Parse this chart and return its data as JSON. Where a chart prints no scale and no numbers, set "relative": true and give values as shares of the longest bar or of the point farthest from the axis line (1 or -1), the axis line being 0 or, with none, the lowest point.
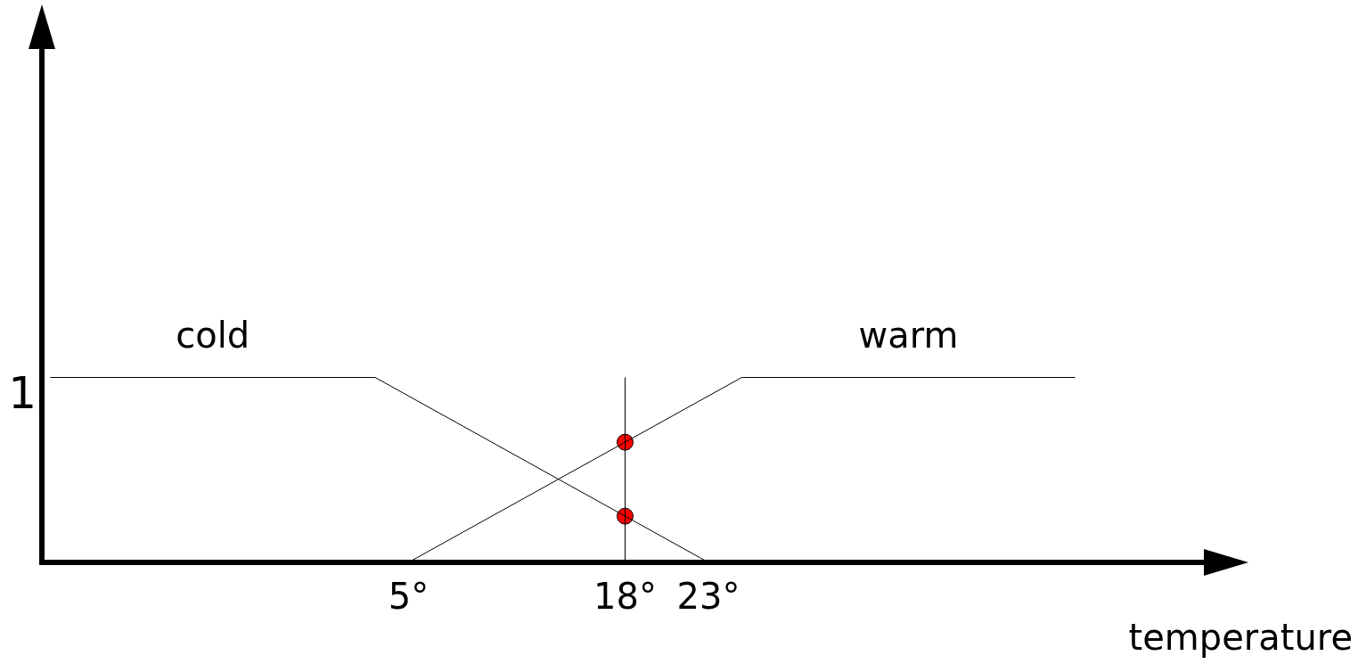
{
  "chart_data": {
    "type": "line",
    "xlabel": "temperature",
    "xlim": [
      -17,
      53
    ],
    "relative": true,
    "annotations": [
      "1"
    ],
    "xticks": [
      {
        "value": 5,
        "label": "5°"
      },
      {
        "value": 18,
        "label": "18°"
      },
      {
        "value": 23,
        "label": "23°"
      }
    ],
    "grid": false,
    "legend": false,
    "marker": "none",
    "series": [
      {
        "name": "cold",
        "color": "#000000",
        "x": [
          -16.5,
          3,
          23
        ],
        "values": [
          1,
          1,
          0
        ]
      },
      {
        "name": "warm",
        "color": "#000000",
        "x": [
          5,
          25,
          45
        ],
        "values": [
          0,
          1,
          1
        ]
      },
      {
        "type": "scatter",
        "color": "#ff0000",
        "marker": "circle",
        "x": [
          18,
          18
        ],
        "values": [
          0.65,
          0.25
        ]
      }
    ],
    "ref_lines": [
      {
        "axis": "x",
        "value": 18,
        "color": "#000000"
      }
    ]
  }
}
